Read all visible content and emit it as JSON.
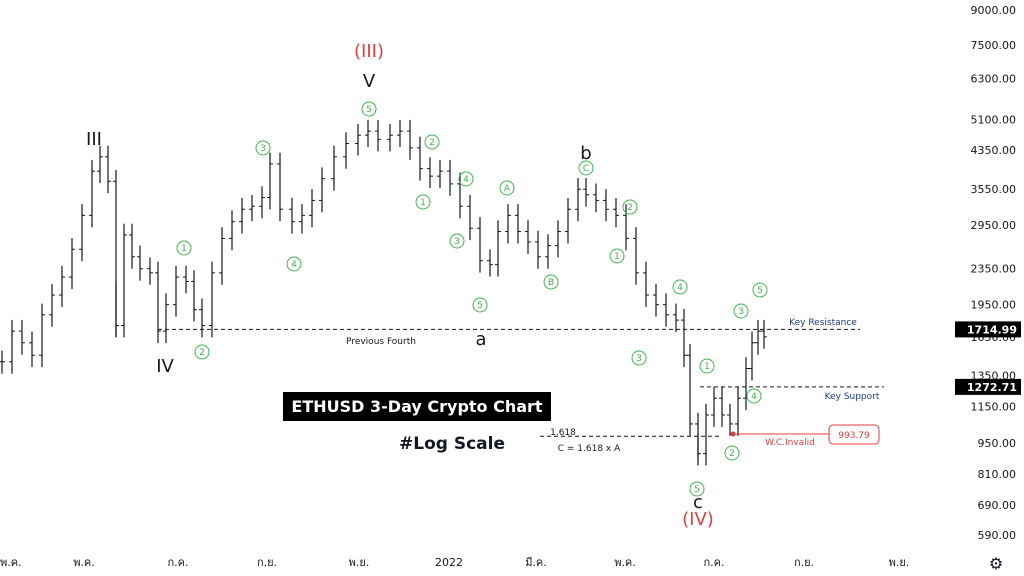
{
  "chart_data": {
    "type": "candlestick",
    "title": "ETHUSD 3-Day Crypto Chart",
    "subtitle": "#Log Scale",
    "log_scale": true,
    "y_ticks": [
      590,
      690,
      810,
      950,
      1150,
      1350,
      1650,
      1950,
      2350,
      2950,
      3550,
      4350,
      5100,
      6300,
      7500,
      9000
    ],
    "y_tick_labels": [
      "590.00",
      "690.00",
      "810.00",
      "950.00",
      "1150.00",
      "1350.00",
      "1650.00",
      "1950.00",
      "2350.00",
      "2950.00",
      "3550.00",
      "4350.00",
      "5100.00",
      "6300.00",
      "7500.00",
      "9000.00"
    ],
    "x_tick_labels": [
      "พ.ค.",
      "พ.ค.",
      "ก.ค.",
      "ก.ย.",
      "พ.ย.",
      "2022",
      "มี.ค.",
      "พ.ค.",
      "ก.ค.",
      "ก.ย.",
      "พ.ย."
    ],
    "price_tags": [
      {
        "label": "1714.99",
        "value": 1714.99
      },
      {
        "label": "1272.71",
        "value": 1272.71
      }
    ],
    "levels": [
      {
        "label": "Previous Fourth",
        "value": 1715
      },
      {
        "label": "Key Resistance",
        "value": 1715
      },
      {
        "label": "Key Support",
        "value": 1272.71
      },
      {
        "label": "C = 1.618 x A",
        "value": 985
      }
    ],
    "fib_label": "1.618",
    "invalidation": {
      "label": "W.C.Invalid",
      "value_label": "993.79",
      "value": 993.79
    },
    "wave_labels_major": [
      "III",
      "IV",
      "V",
      "b",
      "a",
      "c"
    ],
    "wave_labels_red": [
      "(III)",
      "(IV)"
    ],
    "wave_labels_circled": [
      "1",
      "2",
      "3",
      "4",
      "5",
      "A",
      "B",
      "C"
    ],
    "colors": {
      "up_down_bars": "#131722",
      "wave_green": "#3fb34f",
      "wave_red": "#e03d3d",
      "tag_bg": "#000000",
      "invalid_red": "#e03d3d"
    }
  }
}
